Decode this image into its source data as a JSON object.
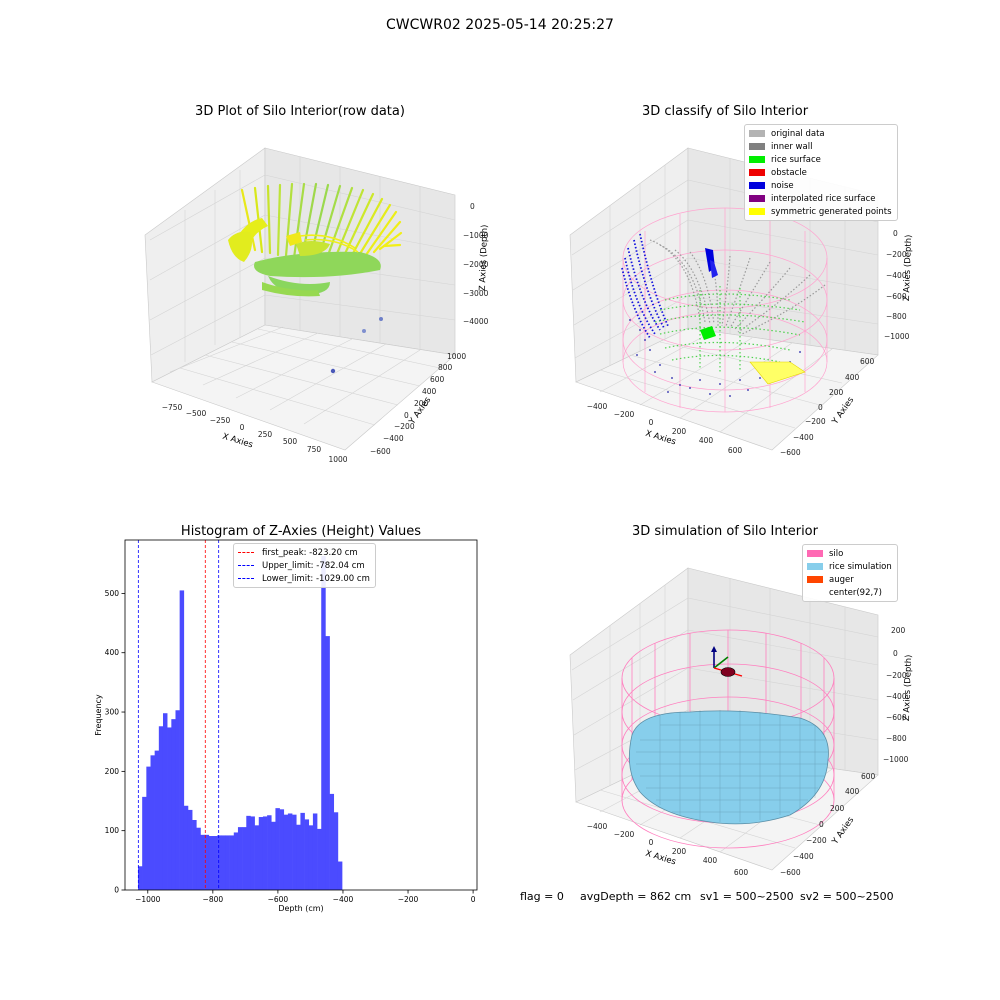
{
  "suptitle": "CWCWR02 2025-05-14 20:25:27",
  "panels": {
    "raw": {
      "title": "3D Plot of Silo Interior(row data)",
      "xlabel": "X Axies",
      "ylabel": "Y Axies",
      "zlabel": "Z Axies (Depth)",
      "xticks": [
        "−750",
        "−500",
        "−250",
        "0",
        "250",
        "500",
        "750",
        "1000"
      ],
      "yticks": [
        "−600",
        "−400",
        "−200",
        "0",
        "200",
        "400",
        "600",
        "800",
        "1000"
      ],
      "zticks": [
        "0",
        "−1000",
        "−2000",
        "−3000",
        "−4000"
      ]
    },
    "classify": {
      "title": "3D classify of Silo Interior",
      "xlabel": "X Axies",
      "ylabel": "Y Axies",
      "zlabel": "Z Axies (Depth)",
      "xticks": [
        "−400",
        "−200",
        "0",
        "200",
        "400",
        "600"
      ],
      "yticks": [
        "−600",
        "−400",
        "−200",
        "0",
        "200",
        "400",
        "600"
      ],
      "zticks": [
        "0",
        "−200",
        "−400",
        "−600",
        "−800",
        "−1000"
      ],
      "legend": [
        {
          "label": "original data",
          "color": "#b3b3b3"
        },
        {
          "label": "inner wall",
          "color": "#808080"
        },
        {
          "label": "rice surface",
          "color": "#00ee00"
        },
        {
          "label": "obstacle",
          "color": "#ee0000"
        },
        {
          "label": "noise",
          "color": "#0000dd"
        },
        {
          "label": "interpolated rice surface",
          "color": "#800080"
        },
        {
          "label": "symmetric generated points",
          "color": "#ffff00"
        }
      ]
    },
    "simulation": {
      "title": "3D simulation of Silo Interior",
      "xlabel": "X Axies",
      "ylabel": "Y Axies",
      "zlabel": "Z Axies (Depth)",
      "xticks": [
        "−400",
        "−200",
        "0",
        "200",
        "400",
        "600"
      ],
      "yticks": [
        "−600",
        "−400",
        "−200",
        "0",
        "200",
        "400",
        "600"
      ],
      "zticks": [
        "200",
        "0",
        "−200",
        "−400",
        "−600",
        "−800",
        "−1000"
      ],
      "legend": [
        {
          "label": "silo",
          "color": "#ff69b4"
        },
        {
          "label": "rice simulation",
          "color": "#87ceeb"
        },
        {
          "label": "auger",
          "color": "#ff4500"
        },
        {
          "label": "center(92,7)",
          "color": "#ffffff"
        }
      ]
    }
  },
  "chart_data": {
    "type": "bar",
    "title": "Histogram of Z-Axies (Height) Values",
    "xlabel": "Depth (cm)",
    "ylabel": "Frequency",
    "xlim": [
      -1070,
      12
    ],
    "ylim": [
      0,
      590
    ],
    "xticks": [
      -1000,
      -800,
      -600,
      -400,
      -200,
      0
    ],
    "yticks": [
      0,
      100,
      200,
      300,
      400,
      500
    ],
    "bin_width": 12.8,
    "bin_start": -1030,
    "values": [
      40,
      157,
      208,
      227,
      235,
      276,
      298,
      274,
      288,
      303,
      505,
      142,
      135,
      118,
      105,
      93,
      93,
      91,
      91,
      92,
      92,
      92,
      92,
      97,
      106,
      106,
      125,
      124,
      109,
      123,
      124,
      126,
      115,
      138,
      136,
      127,
      129,
      127,
      110,
      130,
      119,
      109,
      129,
      103,
      563,
      428,
      162,
      131,
      48
    ],
    "vlines": [
      {
        "label": "first_peak: -823.20 cm",
        "x": -823.2,
        "color": "#ff0000"
      },
      {
        "label": "Upper_limit: -782.04 cm",
        "x": -782.04,
        "color": "#0000ff"
      },
      {
        "label": "Lower_limit: -1029.00 cm",
        "x": -1029.0,
        "color": "#0000ff"
      }
    ],
    "bar_color": "#4b4bff",
    "legend_position": "upper-center"
  },
  "footer": {
    "flag": "flag = 0",
    "avg_depth": "avgDepth = 862 cm",
    "sv1": "sv1 = 500~2500",
    "sv2": "sv2 = 500~2500"
  }
}
